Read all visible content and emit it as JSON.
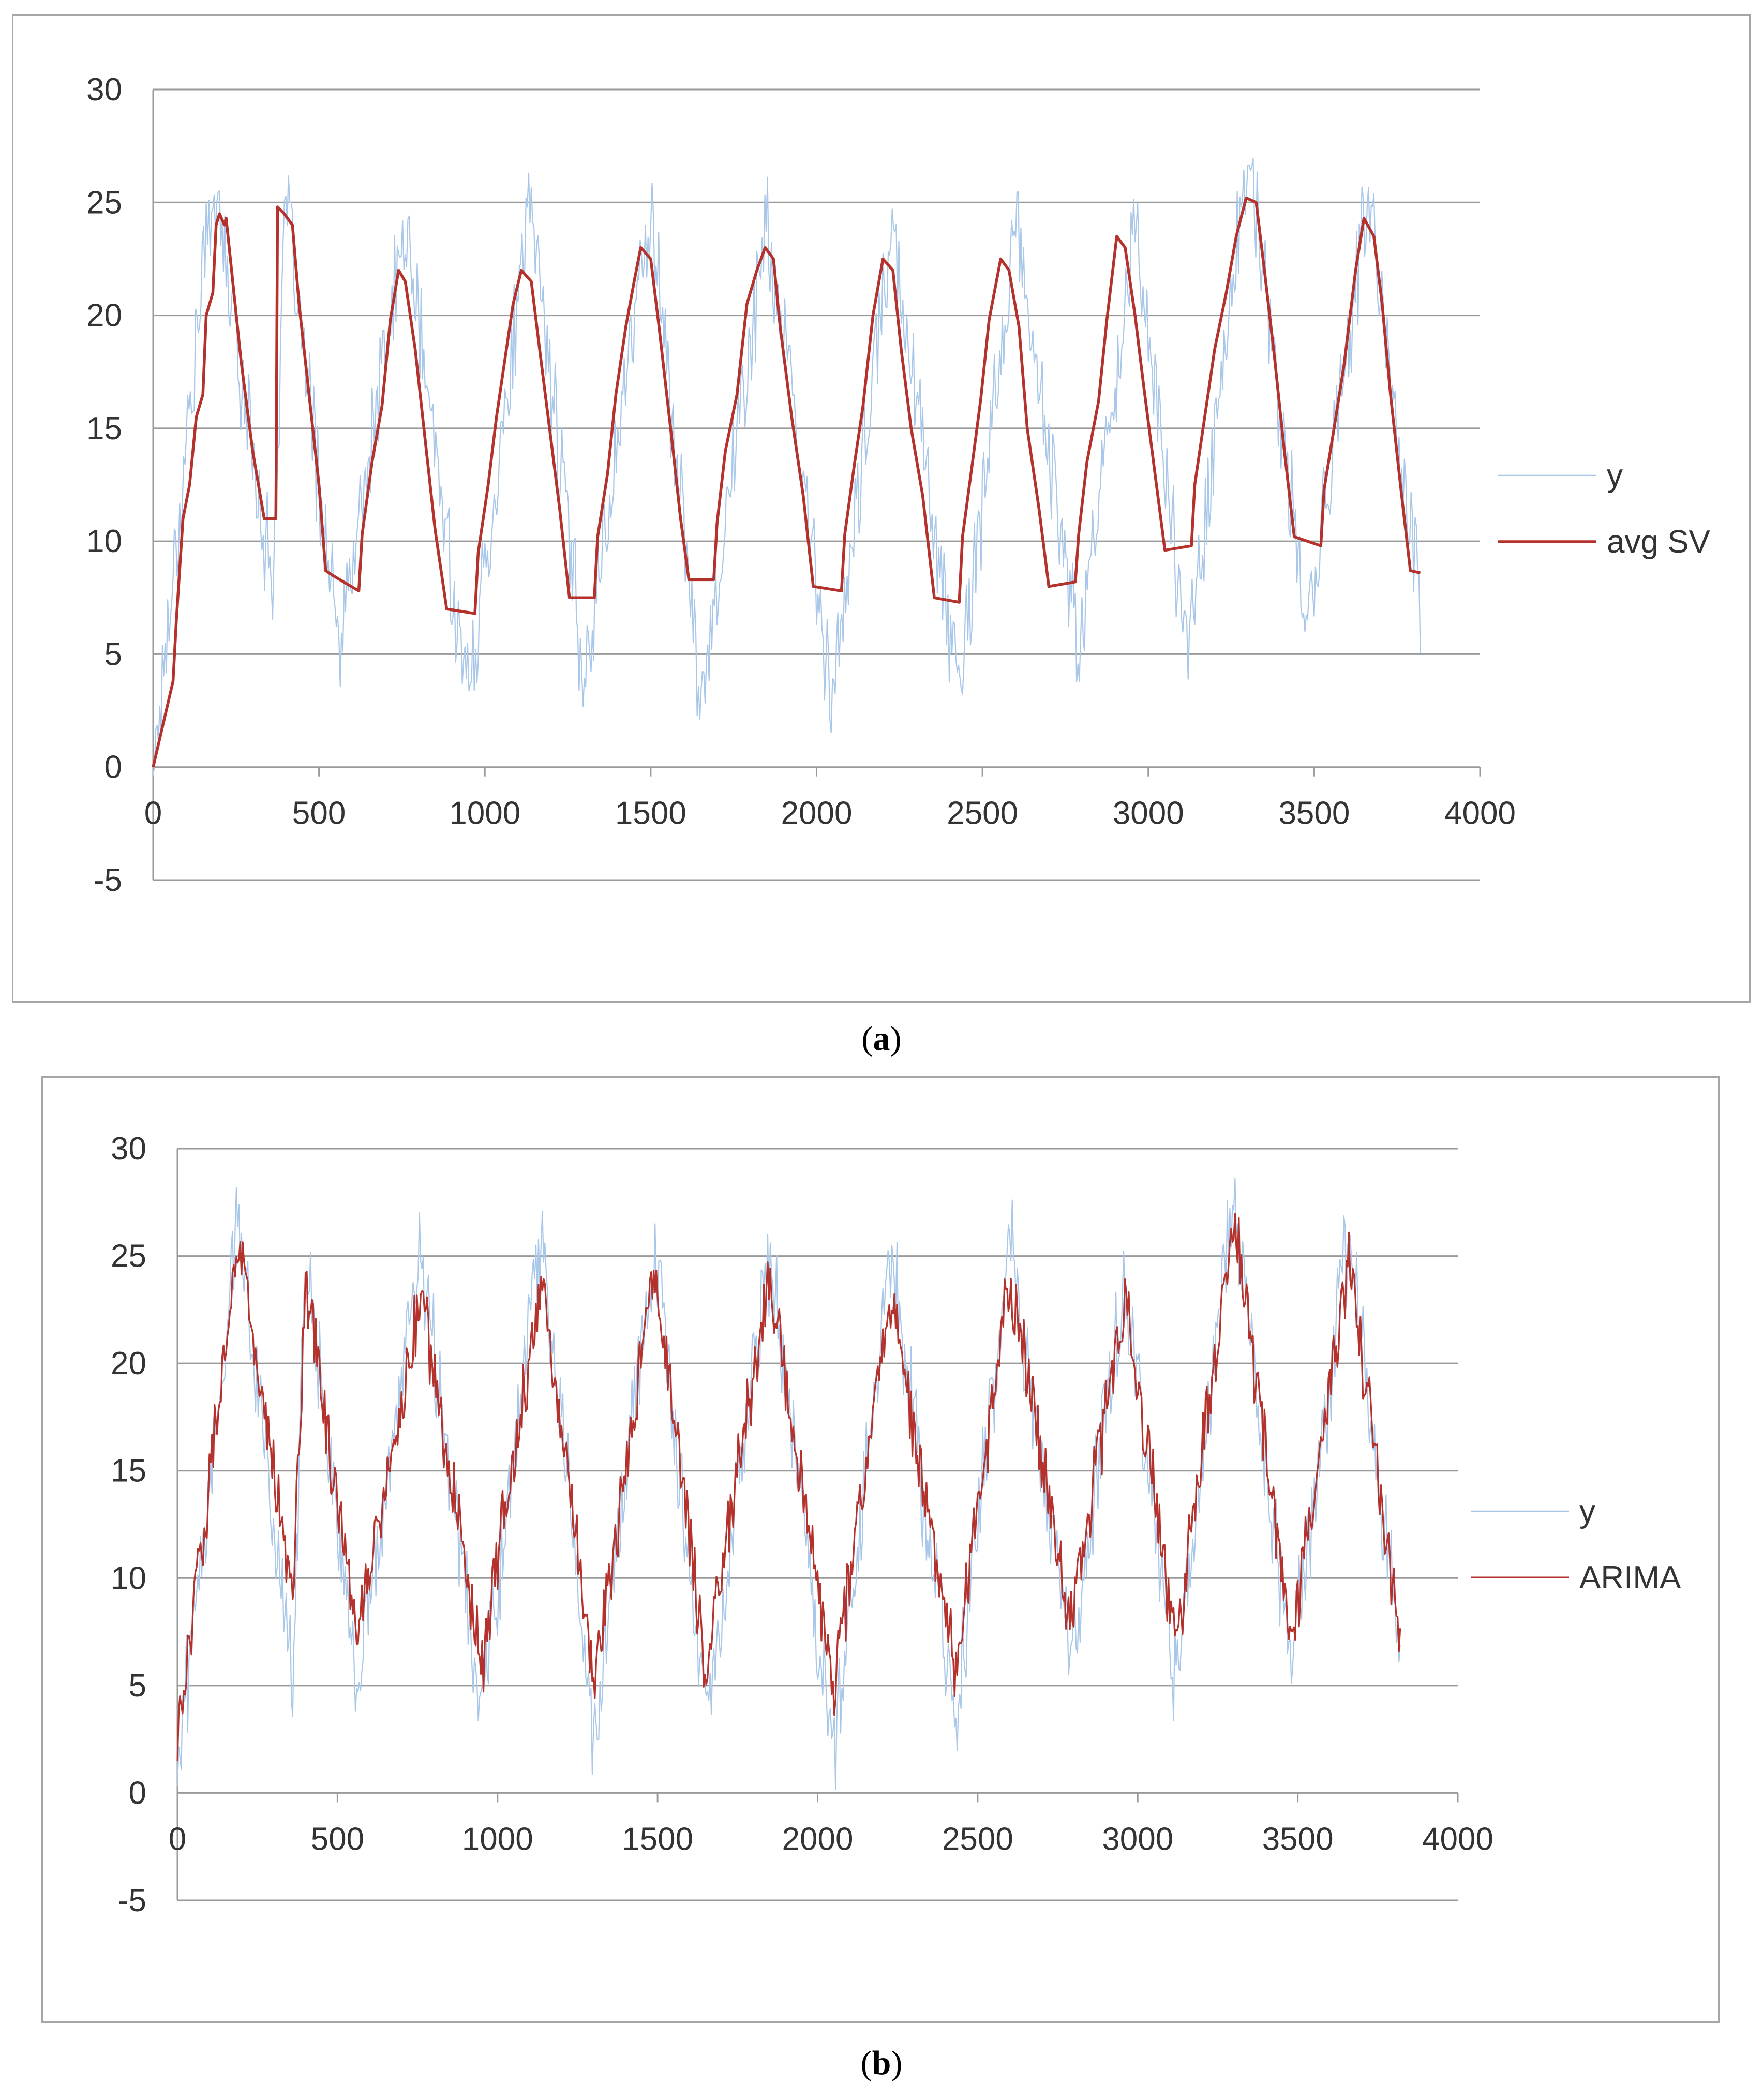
{
  "captions": {
    "a": "a",
    "b": "b"
  },
  "chart_data": [
    {
      "id": "a",
      "type": "line",
      "title": "",
      "xlabel": "",
      "ylabel": "",
      "xlim": [
        0,
        4000
      ],
      "ylim": [
        -5,
        30
      ],
      "x_ticks": [
        "0",
        "500",
        "1000",
        "1500",
        "2000",
        "2500",
        "3000",
        "3500",
        "4000"
      ],
      "y_ticks": [
        "30",
        "25",
        "20",
        "15",
        "10",
        "5",
        "0",
        "-5"
      ],
      "grid": true,
      "legend_position": "right",
      "series": [
        {
          "name": "y",
          "color": "#a9c7e8",
          "peaks": [
            [
              0,
              0
            ],
            [
              180,
              26
            ],
            [
              360,
              8
            ],
            [
              400,
              25
            ],
            [
              560,
              5
            ],
            [
              760,
              24
            ],
            [
              950,
              3
            ],
            [
              1140,
              25
            ],
            [
              1300,
              4
            ],
            [
              1500,
              25
            ],
            [
              1650,
              3
            ],
            [
              1850,
              24
            ],
            [
              2050,
              3
            ],
            [
              2230,
              24
            ],
            [
              2430,
              3
            ],
            [
              2600,
              24
            ],
            [
              2790,
              5
            ],
            [
              2960,
              24
            ],
            [
              3120,
              5
            ],
            [
              3300,
              27
            ],
            [
              3480,
              6
            ],
            [
              3660,
              25
            ],
            [
              3820,
              7
            ]
          ]
        },
        {
          "name": "avg SV",
          "color": "#b5312b",
          "points": [
            [
              0,
              0
            ],
            [
              60,
              3.8
            ],
            [
              70,
              6.5
            ],
            [
              90,
              11
            ],
            [
              110,
              12.5
            ],
            [
              130,
              15.5
            ],
            [
              150,
              16.5
            ],
            [
              160,
              20
            ],
            [
              180,
              21
            ],
            [
              190,
              24
            ],
            [
              200,
              24.5
            ],
            [
              215,
              24
            ],
            [
              220,
              24.3
            ],
            [
              240,
              21.5
            ],
            [
              265,
              18
            ],
            [
              300,
              14
            ],
            [
              335,
              11
            ],
            [
              370,
              11
            ],
            [
              375,
              24.8
            ],
            [
              395,
              24.5
            ],
            [
              420,
              24
            ],
            [
              440,
              20.5
            ],
            [
              470,
              16.5
            ],
            [
              500,
              12.5
            ],
            [
              520,
              8.7
            ],
            [
              540,
              8.5
            ],
            [
              620,
              7.8
            ],
            [
              630,
              10.3
            ],
            [
              660,
              13.5
            ],
            [
              690,
              16
            ],
            [
              715,
              19.8
            ],
            [
              740,
              22
            ],
            [
              760,
              21.5
            ],
            [
              790,
              18.5
            ],
            [
              820,
              14.5
            ],
            [
              850,
              10.5
            ],
            [
              885,
              7
            ],
            [
              970,
              6.8
            ],
            [
              980,
              9.5
            ],
            [
              1010,
              12.5
            ],
            [
              1035,
              15.5
            ],
            [
              1060,
              18
            ],
            [
              1085,
              20.5
            ],
            [
              1110,
              22
            ],
            [
              1140,
              21.5
            ],
            [
              1165,
              18.5
            ],
            [
              1195,
              15
            ],
            [
              1225,
              11.5
            ],
            [
              1255,
              7.5
            ],
            [
              1330,
              7.5
            ],
            [
              1340,
              10.2
            ],
            [
              1370,
              13
            ],
            [
              1395,
              16.5
            ],
            [
              1425,
              19.5
            ],
            [
              1450,
              21.5
            ],
            [
              1470,
              23
            ],
            [
              1500,
              22.5
            ],
            [
              1525,
              19.5
            ],
            [
              1560,
              15
            ],
            [
              1590,
              11
            ],
            [
              1615,
              8.3
            ],
            [
              1690,
              8.3
            ],
            [
              1700,
              10.8
            ],
            [
              1725,
              14
            ],
            [
              1760,
              16.5
            ],
            [
              1790,
              20.5
            ],
            [
              1820,
              22
            ],
            [
              1845,
              23
            ],
            [
              1870,
              22.5
            ],
            [
              1890,
              19.5
            ],
            [
              1925,
              15.5
            ],
            [
              1960,
              12
            ],
            [
              1990,
              8
            ],
            [
              2075,
              7.8
            ],
            [
              2085,
              10.3
            ],
            [
              2115,
              13.5
            ],
            [
              2140,
              16
            ],
            [
              2170,
              20
            ],
            [
              2200,
              22.5
            ],
            [
              2230,
              22
            ],
            [
              2255,
              18.5
            ],
            [
              2285,
              15
            ],
            [
              2320,
              12
            ],
            [
              2355,
              7.5
            ],
            [
              2430,
              7.3
            ],
            [
              2440,
              10.2
            ],
            [
              2470,
              13.5
            ],
            [
              2495,
              16.3
            ],
            [
              2520,
              19.8
            ],
            [
              2555,
              22.5
            ],
            [
              2580,
              22
            ],
            [
              2610,
              19.5
            ],
            [
              2635,
              15
            ],
            [
              2670,
              11.5
            ],
            [
              2700,
              8
            ],
            [
              2780,
              8.2
            ],
            [
              2790,
              10.3
            ],
            [
              2815,
              13.5
            ],
            [
              2850,
              16.2
            ],
            [
              2875,
              19.8
            ],
            [
              2905,
              23.5
            ],
            [
              2930,
              23
            ],
            [
              2960,
              20
            ],
            [
              2985,
              17
            ],
            [
              3020,
              13
            ],
            [
              3050,
              9.6
            ],
            [
              3130,
              9.8
            ],
            [
              3140,
              12.5
            ],
            [
              3170,
              15.5
            ],
            [
              3200,
              18.5
            ],
            [
              3235,
              21
            ],
            [
              3265,
              23.5
            ],
            [
              3295,
              25.2
            ],
            [
              3325,
              25
            ],
            [
              3350,
              22
            ],
            [
              3380,
              18.2
            ],
            [
              3410,
              14
            ],
            [
              3440,
              10.2
            ],
            [
              3520,
              9.8
            ],
            [
              3530,
              12.3
            ],
            [
              3560,
              15
            ],
            [
              3590,
              17.8
            ],
            [
              3625,
              22
            ],
            [
              3650,
              24.3
            ],
            [
              3680,
              23.5
            ],
            [
              3705,
              20.5
            ],
            [
              3730,
              16.5
            ],
            [
              3760,
              12.5
            ],
            [
              3790,
              8.7
            ],
            [
              3820,
              8.6
            ]
          ]
        }
      ]
    },
    {
      "id": "b",
      "type": "line",
      "title": "",
      "xlabel": "",
      "ylabel": "",
      "xlim": [
        0,
        4000
      ],
      "ylim": [
        -5,
        30
      ],
      "x_ticks": [
        "0",
        "500",
        "1000",
        "1500",
        "2000",
        "2500",
        "3000",
        "3500",
        "4000"
      ],
      "y_ticks": [
        "30",
        "25",
        "20",
        "15",
        "10",
        "5",
        "0",
        "-5"
      ],
      "grid": true,
      "legend_position": "right",
      "series": [
        {
          "name": "y",
          "color": "#a9c7e8",
          "peaks": [
            [
              0,
              1
            ],
            [
              190,
              27
            ],
            [
              360,
              5
            ],
            [
              400,
              25
            ],
            [
              560,
              5
            ],
            [
              760,
              25
            ],
            [
              950,
              4
            ],
            [
              1140,
              26
            ],
            [
              1300,
              3
            ],
            [
              1490,
              26
            ],
            [
              1650,
              3
            ],
            [
              1850,
              25
            ],
            [
              2050,
              2
            ],
            [
              2230,
              25
            ],
            [
              2430,
              3
            ],
            [
              2600,
              26
            ],
            [
              2790,
              6
            ],
            [
              2960,
              24
            ],
            [
              3120,
              5
            ],
            [
              3300,
              28
            ],
            [
              3480,
              6
            ],
            [
              3660,
              26
            ],
            [
              3820,
              6
            ]
          ]
        },
        {
          "name": "ARIMA",
          "color": "#b5312b",
          "peaks": [
            [
              0,
              2.5
            ],
            [
              190,
              25.5
            ],
            [
              360,
              9
            ],
            [
              400,
              24
            ],
            [
              560,
              7
            ],
            [
              760,
              23
            ],
            [
              950,
              6
            ],
            [
              1140,
              24
            ],
            [
              1300,
              5
            ],
            [
              1490,
              24.5
            ],
            [
              1650,
              6
            ],
            [
              1850,
              24
            ],
            [
              2050,
              5
            ],
            [
              2230,
              23.5
            ],
            [
              2430,
              5.5
            ],
            [
              2600,
              24
            ],
            [
              2790,
              8
            ],
            [
              2960,
              23
            ],
            [
              3120,
              7
            ],
            [
              3300,
              27
            ],
            [
              3480,
              7
            ],
            [
              3660,
              25
            ],
            [
              3820,
              7
            ]
          ]
        }
      ]
    }
  ]
}
